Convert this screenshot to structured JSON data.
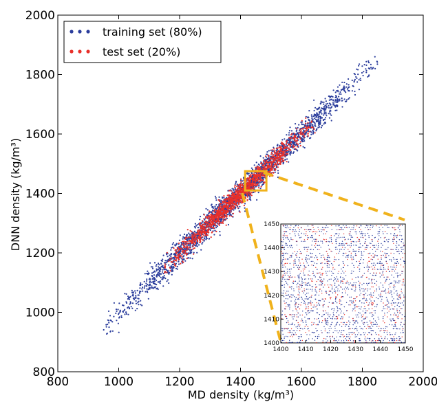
{
  "chart_data": [
    {
      "type": "scatter",
      "title": "",
      "xlabel": "MD density (kg/m³)",
      "ylabel": "DNN density (kg/m³)",
      "xlim": [
        800,
        2000
      ],
      "ylim": [
        800,
        2000
      ],
      "xticks": [
        "800",
        "1000",
        "1200",
        "1400",
        "1600",
        "1800",
        "2000"
      ],
      "yticks": [
        "800",
        "1000",
        "1200",
        "1400",
        "1600",
        "1800",
        "2000"
      ],
      "grid": false,
      "legend_position": "top-left",
      "series": [
        {
          "name": "training set (80%)",
          "color": "#2b3d9c",
          "trend": {
            "x": [
              950,
              1100,
              1250,
              1400,
              1550,
              1700,
              1850
            ],
            "y": [
              950,
              1100,
              1250,
              1400,
              1550,
              1700,
              1850
            ]
          },
          "spread": 22
        },
        {
          "name": "test set (20%)",
          "color": "#e8302a",
          "trend": {
            "x": [
              1150,
              1250,
              1350,
              1400,
              1450,
              1550,
              1650
            ],
            "y": [
              1150,
              1250,
              1350,
              1400,
              1450,
              1550,
              1650
            ]
          },
          "spread": 18
        }
      ],
      "zoom_box": {
        "x": [
          1415,
          1485
        ],
        "y": [
          1410,
          1475
        ],
        "color": "#f0b21c"
      }
    },
    {
      "type": "scatter",
      "title": "",
      "xlim": [
        1400,
        1450
      ],
      "ylim": [
        1400,
        1450
      ],
      "xticks": [
        "1400",
        "1410",
        "1420",
        "1430",
        "1440",
        "1450"
      ],
      "yticks": [
        "1400",
        "1410",
        "1420",
        "1430",
        "1440",
        "1450"
      ],
      "series": [
        {
          "name": "training set (80%)",
          "color": "#2b3d9c"
        },
        {
          "name": "test set (20%)",
          "color": "#e8302a"
        }
      ]
    }
  ]
}
